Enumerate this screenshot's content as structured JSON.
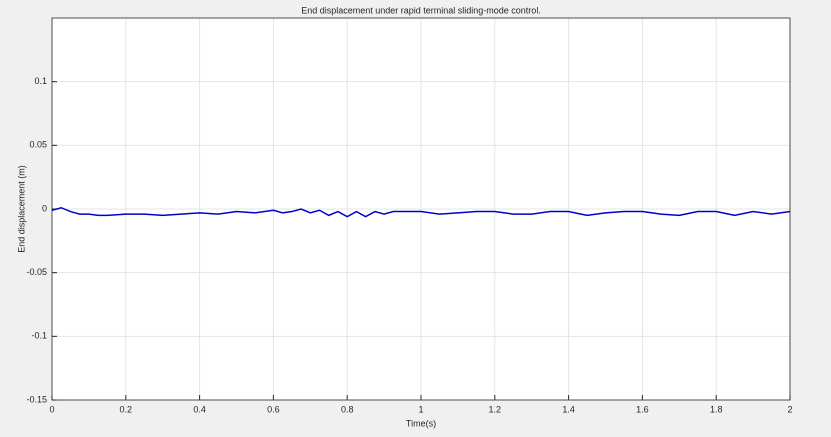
{
  "chart_data": {
    "type": "line",
    "title": "End displacement under rapid terminal sliding-mode control.",
    "x_label": "Time(s)",
    "y_label": "End displacement (m)",
    "xlim": [
      0,
      2
    ],
    "xticks": [
      0,
      0.2,
      0.4,
      0.6,
      0.8,
      1,
      1.2,
      1.4,
      1.6,
      1.8,
      2
    ],
    "ylim": [
      -0.15,
      0.15
    ],
    "yticks": [
      -0.15,
      -0.1,
      -0.05,
      0,
      0.05,
      0.1
    ],
    "grid": true,
    "series": [
      {
        "color": "#0000cc",
        "x": [
          0,
          0.025,
          0.05,
          0.075,
          0.1,
          0.125,
          0.15,
          0.2,
          0.25,
          0.3,
          0.35,
          0.4,
          0.45,
          0.5,
          0.55,
          0.6,
          0.625,
          0.65,
          0.675,
          0.7,
          0.725,
          0.75,
          0.775,
          0.8,
          0.825,
          0.85,
          0.875,
          0.9,
          0.925,
          0.95,
          0.975,
          1,
          1.05,
          1.1,
          1.15,
          1.2,
          1.25,
          1.3,
          1.35,
          1.4,
          1.45,
          1.5,
          1.55,
          1.6,
          1.65,
          1.7,
          1.75,
          1.8,
          1.85,
          1.9,
          1.95,
          2
        ],
        "values": [
          -0.001,
          0.001,
          -0.002,
          -0.004,
          -0.004,
          -0.005,
          -0.005,
          -0.004,
          -0.004,
          -0.005,
          -0.004,
          -0.003,
          -0.004,
          -0.002,
          -0.003,
          -0.001,
          -0.003,
          -0.002,
          0,
          -0.003,
          -0.001,
          -0.005,
          -0.002,
          -0.006,
          -0.002,
          -0.006,
          -0.002,
          -0.004,
          -0.002,
          -0.002,
          -0.002,
          -0.002,
          -0.004,
          -0.003,
          -0.002,
          -0.002,
          -0.004,
          -0.004,
          -0.002,
          -0.002,
          -0.005,
          -0.003,
          -0.002,
          -0.002,
          -0.004,
          -0.005,
          -0.002,
          -0.002,
          -0.005,
          -0.002,
          -0.004,
          -0.002
        ]
      }
    ]
  }
}
